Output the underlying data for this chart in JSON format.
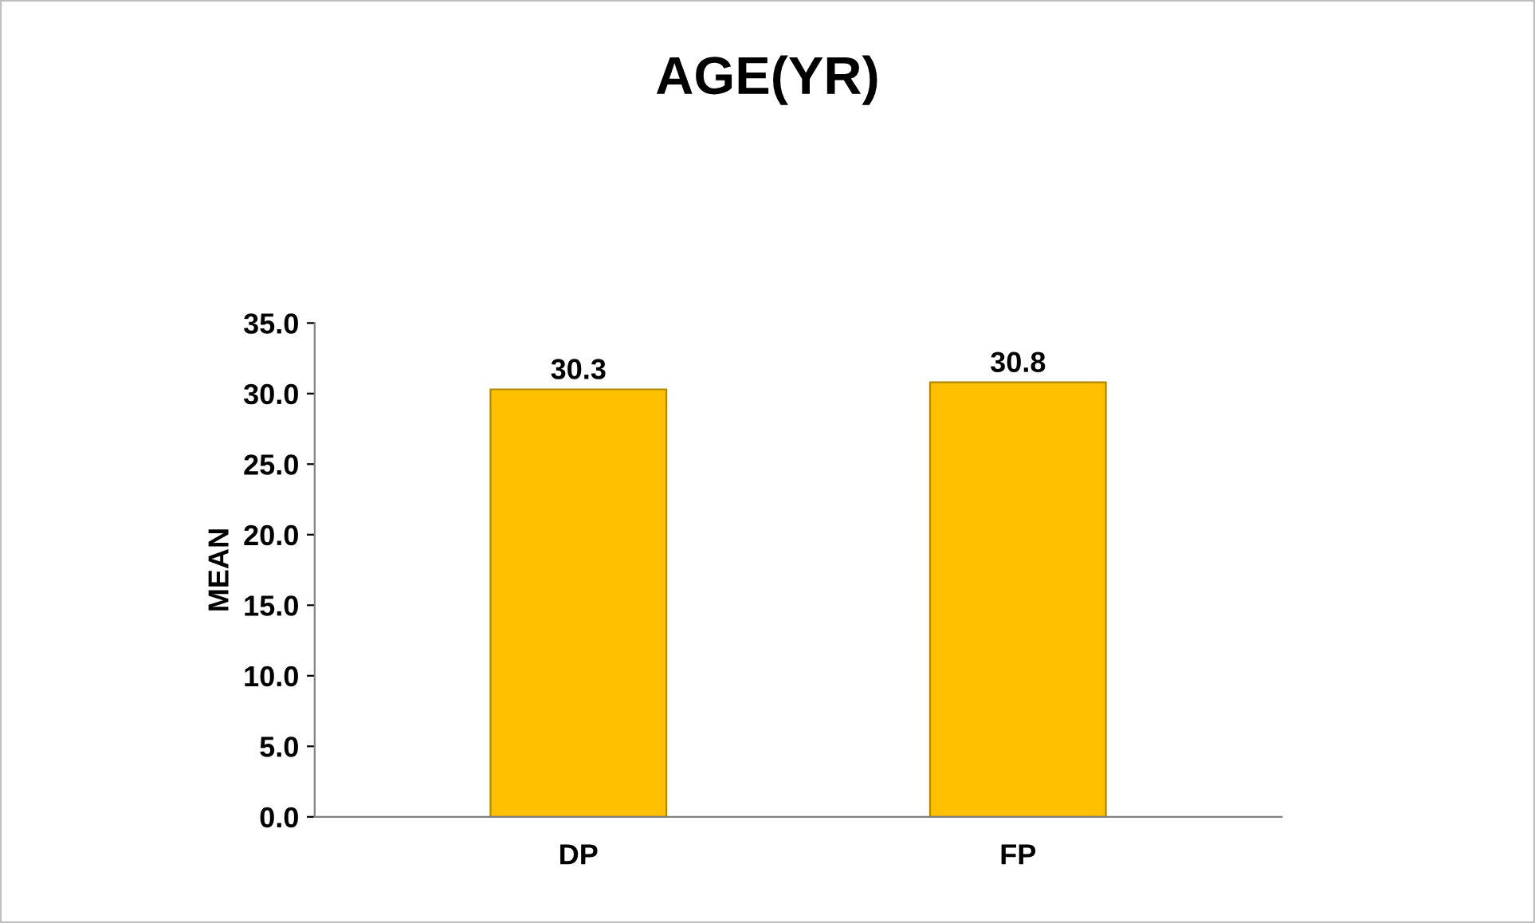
{
  "chart_data": {
    "type": "bar",
    "title": "AGE(YR)",
    "ylabel": "MEAN",
    "categories": [
      "DP",
      "FP"
    ],
    "values": [
      30.3,
      30.8
    ],
    "color": "#ffc000",
    "ylim": [
      0,
      35
    ],
    "yticks": [
      {
        "value": 0,
        "label": "0.0"
      },
      {
        "value": 5,
        "label": "5.0"
      },
      {
        "value": 10,
        "label": "10.0"
      },
      {
        "value": 15,
        "label": "15.0"
      },
      {
        "value": 20,
        "label": "20.0"
      },
      {
        "value": 25,
        "label": "25.0"
      },
      {
        "value": 30,
        "label": "30.0"
      },
      {
        "value": 35,
        "label": "35.0"
      }
    ],
    "grid": false,
    "legend": false,
    "data_labels": true
  }
}
